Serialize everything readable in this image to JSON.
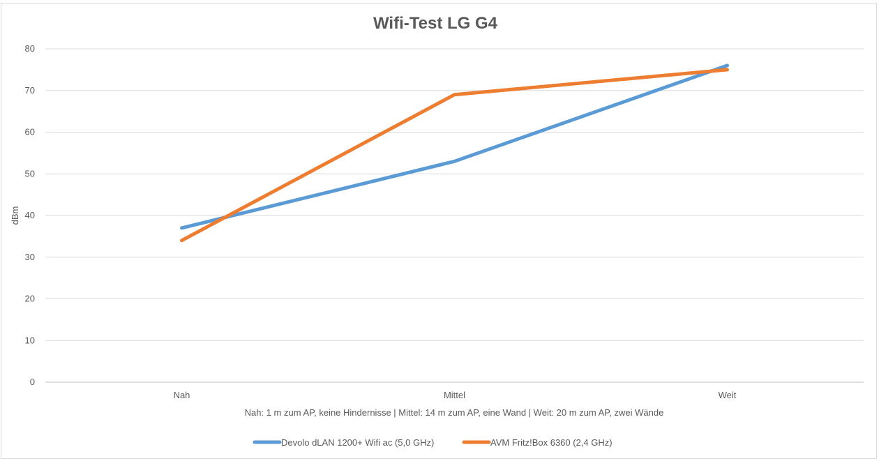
{
  "chart_data": {
    "type": "line",
    "title": "Wifi-Test LG G4",
    "xlabel": "Nah: 1 m zum AP, keine Hindernisse | Mittel: 14 m zum AP, eine Wand | Weit: 20 m zum AP, zwei Wände",
    "ylabel": "dBm",
    "categories": [
      "Nah",
      "Mittel",
      "Weit"
    ],
    "ylim": [
      0,
      80
    ],
    "yticks": [
      0,
      10,
      20,
      30,
      40,
      50,
      60,
      70,
      80
    ],
    "grid": true,
    "legend_position": "bottom",
    "series": [
      {
        "name": "Devolo dLAN 1200+ Wifi ac (5,0 GHz)",
        "values": [
          37,
          53,
          76
        ],
        "color": "#5b9bd5"
      },
      {
        "name": "AVM Fritz!Box 6360 (2,4 GHz)",
        "values": [
          34,
          69,
          75
        ],
        "color": "#ed7d31"
      }
    ]
  }
}
